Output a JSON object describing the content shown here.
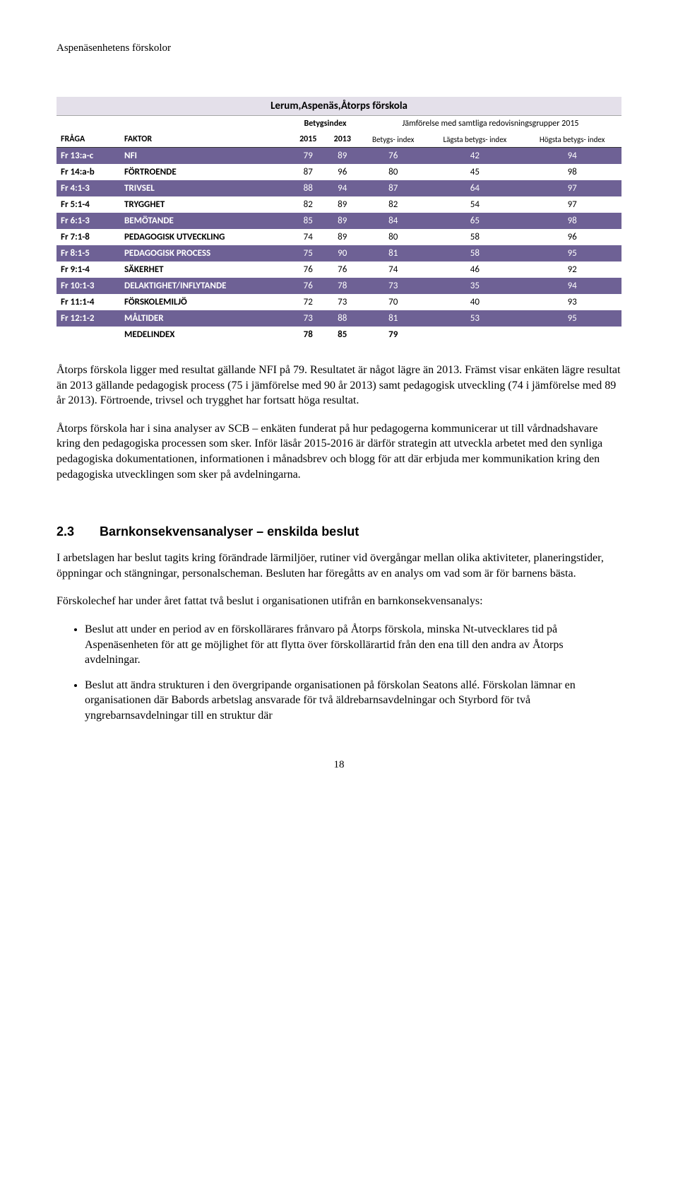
{
  "header": {
    "title": "Aspenäsenhetens förskolor"
  },
  "table": {
    "type": "table",
    "title": "Lerum,Aspenäs,Åtorps förskola",
    "header_group1": {
      "betygsindex": "Betygsindex",
      "comparison": "Jämförelse med samtliga redovisningsgrupper 2015"
    },
    "header_group2": {
      "fraga": "FRÅGA",
      "faktor": "FAKTOR",
      "y2015": "2015",
      "y2013": "2013",
      "betygsindex": "Betygs-\nindex",
      "lagsta": "Lägsta betygs-\nindex",
      "hogsta": "Högsta betygs-\nindex"
    },
    "rows": [
      {
        "code": "Fr 13:a-c",
        "label": "NFI",
        "v2015": 79,
        "v2013": 89,
        "bi": 76,
        "low": 42,
        "high": 94
      },
      {
        "code": "Fr 14:a-b",
        "label": "FÖRTROENDE",
        "v2015": 87,
        "v2013": 96,
        "bi": 80,
        "low": 45,
        "high": 98
      },
      {
        "code": "Fr 4:1-3",
        "label": "TRIVSEL",
        "v2015": 88,
        "v2013": 94,
        "bi": 87,
        "low": 64,
        "high": 97
      },
      {
        "code": "Fr 5:1-4",
        "label": "TRYGGHET",
        "v2015": 82,
        "v2013": 89,
        "bi": 82,
        "low": 54,
        "high": 97
      },
      {
        "code": "Fr 6:1-3",
        "label": "BEMÖTANDE",
        "v2015": 85,
        "v2013": 89,
        "bi": 84,
        "low": 65,
        "high": 98
      },
      {
        "code": "Fr 7:1-8",
        "label": "PEDAGOGISK UTVECKLING",
        "v2015": 74,
        "v2013": 89,
        "bi": 80,
        "low": 58,
        "high": 96
      },
      {
        "code": "Fr 8:1-5",
        "label": "PEDAGOGISK PROCESS",
        "v2015": 75,
        "v2013": 90,
        "bi": 81,
        "low": 58,
        "high": 95
      },
      {
        "code": "Fr 9:1-4",
        "label": "SÄKERHET",
        "v2015": 76,
        "v2013": 76,
        "bi": 74,
        "low": 46,
        "high": 92
      },
      {
        "code": "Fr 10:1-3",
        "label": "DELAKTIGHET/INFLYTANDE",
        "v2015": 76,
        "v2013": 78,
        "bi": 73,
        "low": 35,
        "high": 94
      },
      {
        "code": "Fr 11:1-4",
        "label": "FÖRSKOLEMILJÖ",
        "v2015": 72,
        "v2013": 73,
        "bi": 70,
        "low": 40,
        "high": 93
      },
      {
        "code": "Fr 12:1-2",
        "label": "MÅLTIDER",
        "v2015": 73,
        "v2013": 88,
        "bi": 81,
        "low": 53,
        "high": 95
      }
    ],
    "medel_label": "MEDELINDEX",
    "medel": {
      "v2015": 78,
      "v2013": 85,
      "bi": 79
    },
    "colors": {
      "title_bg": "#e4e0ea",
      "band_bg": "#6e6195",
      "band_fg": "#ffffff",
      "alt_bg": "#ffffff",
      "alt_fg": "#000000"
    }
  },
  "paragraphs": {
    "p1": "Åtorps förskola ligger med resultat gällande NFI på 79. Resultatet är något lägre än 2013. Främst visar enkäten lägre resultat än 2013 gällande pedagogisk process (75 i jämförelse med 90 år 2013) samt pedagogisk utveckling (74 i jämförelse med 89 år 2013). Förtroende, trivsel och trygghet har fortsatt höga resultat.",
    "p2": "Åtorps förskola har i sina analyser av SCB – enkäten funderat på hur pedagogerna kommunicerar ut till vårdnadshavare kring den pedagogiska processen som sker. Inför läsår 2015-2016 är därför strategin att utveckla arbetet med den synliga pedagogiska dokumentationen, informationen i månadsbrev och blogg för att där erbjuda mer kommunikation kring den pedagogiska utvecklingen som sker på avdelningarna."
  },
  "section": {
    "number": "2.3",
    "title": "Barnkonsekvensanalyser – enskilda beslut",
    "intro1": "I arbetslagen har beslut tagits kring förändrade lärmiljöer, rutiner vid övergångar mellan olika aktiviteter, planeringstider, öppningar och stängningar, personalscheman. Besluten har föregåtts av en analys om vad som är för barnens bästa.",
    "intro2": "Förskolechef har under året fattat två beslut i organisationen utifrån en barnkonsekvensanalys:",
    "bullets": [
      "Beslut att under en period av en förskollärares frånvaro på Åtorps förskola, minska Nt-utvecklares tid på Aspenäsenheten för att ge möjlighet för att flytta över förskollärartid från den ena till den andra av Åtorps avdelningar.",
      "Beslut att ändra strukturen i den övergripande organisationen på förskolan Seatons allé. Förskolan lämnar en organisationen där Babords arbetslag ansvarade för två äldrebarnsavdelningar och Styrbord för två yngrebarnsavdelningar till en struktur där"
    ]
  },
  "page_number": "18"
}
